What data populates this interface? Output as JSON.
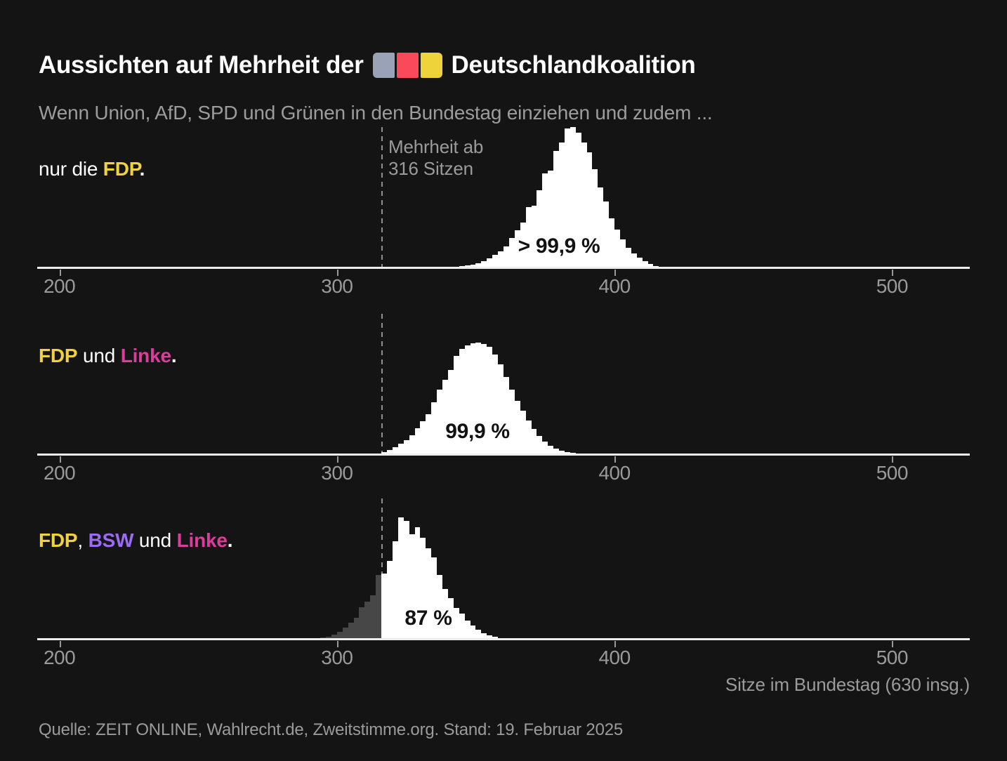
{
  "title": {
    "prefix": "Aussichten auf Mehrheit der",
    "suffix": "Deutschlandkoalition",
    "flag_colors": [
      "#9aa2b8",
      "#f9495a",
      "#efd33b"
    ]
  },
  "subtitle": "Wenn Union, AfD, SPD und Grünen in den Bundestag einziehen und zudem ...",
  "source": "Quelle: ZEIT ONLINE, Wahlrecht.de, Zweitstimme.org. Stand: 19. Februar 2025",
  "chart_data": {
    "type": "histogram",
    "small_multiples": 3,
    "x_axis": {
      "label": "Sitze im Bundestag (630 insg.)",
      "ticks": [
        200,
        300,
        400,
        500
      ],
      "range": [
        192,
        528
      ],
      "majority": {
        "threshold": 316,
        "note_lines": [
          "Mehrheit ab",
          "316 Sitzen"
        ]
      }
    },
    "y_axis": {
      "unit": "relative frequency, 1.0 = full panel height",
      "gridlines": false
    },
    "colors": {
      "bar_above_threshold": "#ffffff",
      "bar_below_threshold": "#474747",
      "axis_line": "#ececec",
      "dashed_line": "#8f8f8f",
      "muted_text": "#9b9b9b",
      "background": "#141414"
    },
    "panels": [
      {
        "condition_parts": [
          {
            "text": "nur die ",
            "color": "#ffffff",
            "bold": false
          },
          {
            "text": "FDP",
            "color": "#efd23e",
            "bold": true
          },
          {
            "text": ".",
            "color": "#ffffff",
            "bold": true
          }
        ],
        "probability_label": "> 99,9 %",
        "bin_width": 2,
        "above": {
          "start": 344,
          "values": [
            0.01,
            0.015,
            0.02,
            0.03,
            0.045,
            0.065,
            0.09,
            0.115,
            0.15,
            0.21,
            0.265,
            0.32,
            0.43,
            0.44,
            0.55,
            0.67,
            0.69,
            0.83,
            0.89,
            0.99,
            1.0,
            0.96,
            0.89,
            0.82,
            0.7,
            0.57,
            0.47,
            0.35,
            0.27,
            0.2,
            0.14,
            0.1,
            0.07,
            0.045,
            0.025,
            0.012
          ]
        }
      },
      {
        "condition_parts": [
          {
            "text": "FDP",
            "color": "#efd23e",
            "bold": true
          },
          {
            "text": " und ",
            "color": "#ffffff",
            "bold": false
          },
          {
            "text": "Linke",
            "color": "#db3c9d",
            "bold": true
          },
          {
            "text": ".",
            "color": "#ffffff",
            "bold": true
          }
        ],
        "probability_label": "99,9 %",
        "bin_width": 2,
        "above": {
          "start": 316,
          "values": [
            0.015,
            0.03,
            0.05,
            0.075,
            0.1,
            0.135,
            0.185,
            0.235,
            0.285,
            0.37,
            0.46,
            0.53,
            0.6,
            0.7,
            0.75,
            0.775,
            0.79,
            0.795,
            0.785,
            0.765,
            0.71,
            0.64,
            0.55,
            0.46,
            0.38,
            0.31,
            0.24,
            0.18,
            0.13,
            0.09,
            0.06,
            0.04,
            0.025,
            0.015,
            0.008,
            0.004
          ]
        }
      },
      {
        "condition_parts": [
          {
            "text": "FDP",
            "color": "#efd23e",
            "bold": true
          },
          {
            "text": ", ",
            "color": "#ffffff",
            "bold": false
          },
          {
            "text": "BSW",
            "color": "#9c6bf4",
            "bold": true
          },
          {
            "text": " und ",
            "color": "#ffffff",
            "bold": false
          },
          {
            "text": "Linke",
            "color": "#db3c9d",
            "bold": true
          },
          {
            "text": ".",
            "color": "#ffffff",
            "bold": true
          }
        ],
        "probability_label": "87 %",
        "bin_width": 2,
        "below": {
          "start": 294,
          "values": [
            0.01,
            0.016,
            0.03,
            0.05,
            0.08,
            0.115,
            0.15,
            0.225,
            0.265,
            0.31,
            0.455
          ]
        },
        "above": {
          "start": 316,
          "values": [
            0.465,
            0.555,
            0.695,
            0.865,
            0.84,
            0.745,
            0.795,
            0.72,
            0.645,
            0.58,
            0.455,
            0.355,
            0.29,
            0.22,
            0.18,
            0.13,
            0.095,
            0.063,
            0.039,
            0.025,
            0.013,
            0.007
          ]
        }
      }
    ]
  }
}
